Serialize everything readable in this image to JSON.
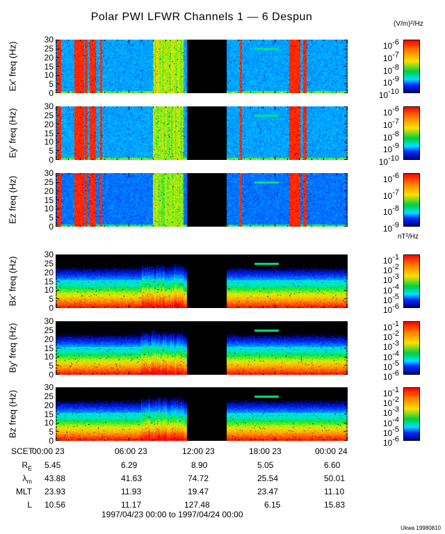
{
  "title": "Polar PWI LFWR Channels 1 — 6 Despun",
  "e_unit": "(V/m)²/Hz",
  "b_unit": "nT²/Hz",
  "credit": "Ukwa 19980810",
  "date_range": "1997/04/23 00:00 to 1997/04/24 00:00",
  "chart_data": {
    "type": "heatmap",
    "xlabel": "SCET",
    "xlim_hours": [
      0,
      24
    ],
    "data_gap_hours": [
      10.75,
      14.0
    ],
    "x_tick_labels": [
      "00:00 23",
      "06:00 23",
      "12:00 23",
      "18:00 23",
      "00:00 24"
    ],
    "y_ticks": [
      "0",
      "5",
      "10",
      "15",
      "20",
      "25",
      "30"
    ],
    "ylim": [
      0,
      30
    ],
    "colormap": "rainbow",
    "panels": [
      {
        "name": "Ex'",
        "ylabel": "Ex' freq (Hz)",
        "kind": "E",
        "colorbar_base": "10",
        "colorbar_exponents": [
          "-6",
          "-7",
          "-8",
          "-9",
          "-10"
        ],
        "line_hours": [
          16.3,
          18.3
        ]
      },
      {
        "name": "Ey'",
        "ylabel": "Ey' freq (Hz)",
        "kind": "E",
        "colorbar_base": "10",
        "colorbar_exponents": [
          "-6",
          "-7",
          "-8",
          "-9",
          "-10"
        ],
        "line_hours": [
          16.3,
          18.3
        ]
      },
      {
        "name": "Ez",
        "ylabel": "Ez freq (Hz)",
        "kind": "E",
        "colorbar_base": "10",
        "colorbar_exponents": [
          "-6",
          "-7",
          "-8",
          "-9"
        ],
        "line_hours": [
          16.3,
          18.3
        ]
      },
      {
        "name": "Bx'",
        "ylabel": "Bx' freq (Hz)",
        "kind": "B",
        "colorbar_base": "10",
        "colorbar_exponents": [
          "-1",
          "-2",
          "-3",
          "-4",
          "-5",
          "-6"
        ],
        "line_hours": [
          16.3,
          18.3
        ]
      },
      {
        "name": "By'",
        "ylabel": "By' freq (Hz)",
        "kind": "B",
        "colorbar_base": "10",
        "colorbar_exponents": [
          "-1",
          "-2",
          "-3",
          "-4",
          "-5",
          "-6"
        ],
        "line_hours": [
          16.3,
          18.3
        ]
      },
      {
        "name": "Bz",
        "ylabel": "Bz freq (Hz)",
        "kind": "B",
        "colorbar_base": "10",
        "colorbar_exponents": [
          "-1",
          "-2",
          "-3",
          "-4",
          "-5",
          "-6"
        ],
        "line_hours": [
          16.3,
          18.3
        ]
      }
    ],
    "e_intense_bands_hours": [
      [
        0.1,
        0.4
      ],
      [
        1.5,
        2.3
      ],
      [
        2.4,
        2.6
      ],
      [
        2.8,
        3.3
      ],
      [
        3.6,
        3.8
      ],
      [
        8.0,
        10.5
      ],
      [
        15.1,
        15.3
      ],
      [
        19.2,
        20.1
      ],
      [
        20.3,
        20.6
      ]
    ]
  },
  "ephemeris": {
    "rows": [
      {
        "label": "R",
        "sub": "E",
        "values": [
          "5.45",
          "6.29",
          "8.90",
          "5.05",
          "6.60"
        ]
      },
      {
        "label": "λ",
        "sub": "m",
        "values": [
          "43.88",
          "41.63",
          "74.72",
          "25.54",
          "50.01"
        ]
      },
      {
        "label": "MLT",
        "sub": "",
        "values": [
          "23.93",
          "11.93",
          "19.47",
          "23.47",
          "11.10"
        ]
      },
      {
        "label": "L",
        "sub": "",
        "values": [
          "10.56",
          "11.17",
          "127.48",
          "6.15",
          "15.83"
        ]
      }
    ]
  }
}
